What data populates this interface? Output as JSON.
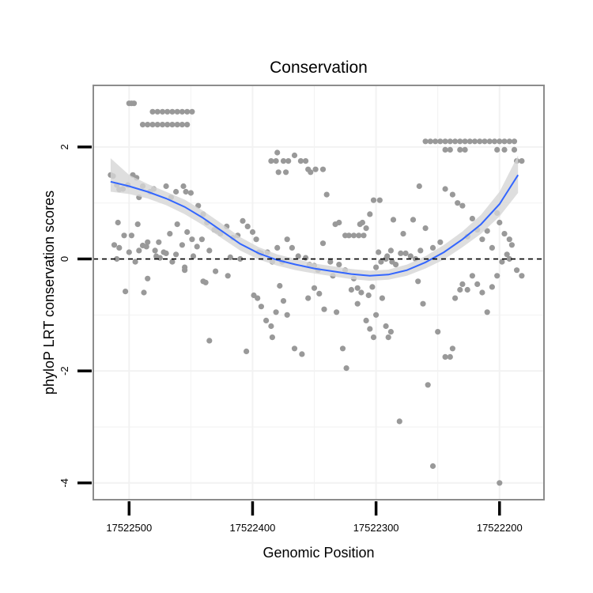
{
  "chart_data": {
    "type": "scatter",
    "title": "Conservation",
    "xlabel": "Genomic Position",
    "ylabel": "phyloP LRT conservation scores",
    "x_reversed": true,
    "xlim": [
      17522529,
      17522164
    ],
    "ylim": [
      -4.3,
      3.1
    ],
    "x_ticks": [
      17522500,
      17522400,
      17522300,
      17522200
    ],
    "x_tick_labels": [
      "17522500",
      "17522400",
      "17522300",
      "17522200"
    ],
    "y_ticks": [
      -4,
      -2,
      0,
      2
    ],
    "y_tick_labels": [
      "-4",
      "-2",
      "0",
      "2"
    ],
    "grid": true,
    "reference_line": {
      "y": 0,
      "style": "dashed"
    },
    "colors": {
      "points": "#999999",
      "fit_line": "#3366ff",
      "ribbon": "#d6d6d6",
      "grid": "#f2f2f2",
      "frame": "#8c8c8c"
    },
    "series": [
      {
        "kind": "points",
        "points": [
          [
            17522500,
            2.78
          ],
          [
            17522498,
            2.78
          ],
          [
            17522496,
            2.78
          ],
          [
            17522489,
            2.4
          ],
          [
            17522485,
            2.4
          ],
          [
            17522481,
            2.4
          ],
          [
            17522477,
            2.4
          ],
          [
            17522473,
            2.4
          ],
          [
            17522469,
            2.4
          ],
          [
            17522465,
            2.4
          ],
          [
            17522461,
            2.4
          ],
          [
            17522457,
            2.4
          ],
          [
            17522453,
            2.4
          ],
          [
            17522481,
            2.63
          ],
          [
            17522477,
            2.63
          ],
          [
            17522473,
            2.63
          ],
          [
            17522469,
            2.63
          ],
          [
            17522465,
            2.63
          ],
          [
            17522461,
            2.63
          ],
          [
            17522457,
            2.63
          ],
          [
            17522453,
            2.63
          ],
          [
            17522449,
            2.63
          ],
          [
            17522385,
            1.75
          ],
          [
            17522381,
            1.75
          ],
          [
            17522375,
            1.75
          ],
          [
            17522371,
            1.75
          ],
          [
            17522361,
            1.75
          ],
          [
            17522357,
            1.75
          ],
          [
            17522355,
            1.6
          ],
          [
            17522349,
            1.6
          ],
          [
            17522343,
            1.6
          ],
          [
            17522353,
            1.55
          ],
          [
            17522373,
            1.55
          ],
          [
            17522379,
            1.55
          ],
          [
            17522260,
            2.1
          ],
          [
            17522256,
            2.1
          ],
          [
            17522252,
            2.1
          ],
          [
            17522248,
            2.1
          ],
          [
            17522244,
            2.1
          ],
          [
            17522240,
            2.1
          ],
          [
            17522236,
            2.1
          ],
          [
            17522232,
            2.1
          ],
          [
            17522228,
            2.1
          ],
          [
            17522224,
            2.1
          ],
          [
            17522220,
            2.1
          ],
          [
            17522216,
            2.1
          ],
          [
            17522212,
            2.1
          ],
          [
            17522208,
            2.1
          ],
          [
            17522204,
            2.1
          ],
          [
            17522200,
            2.1
          ],
          [
            17522196,
            2.1
          ],
          [
            17522192,
            2.1
          ],
          [
            17522188,
            2.1
          ],
          [
            17522244,
            1.95
          ],
          [
            17522240,
            1.95
          ],
          [
            17522232,
            1.95
          ],
          [
            17522228,
            1.95
          ],
          [
            17522202,
            1.95
          ],
          [
            17522196,
            1.95
          ],
          [
            17522188,
            1.95
          ],
          [
            17522186,
            1.75
          ],
          [
            17522182,
            1.75
          ],
          [
            17522515,
            1.5
          ],
          [
            17522513,
            1.48
          ],
          [
            17522510,
            1.32
          ],
          [
            17522508,
            1.24
          ],
          [
            17522505,
            1.25
          ],
          [
            17522501,
            1.32
          ],
          [
            17522497,
            1.5
          ],
          [
            17522494,
            1.45
          ],
          [
            17522492,
            1.1
          ],
          [
            17522489,
            1.3
          ],
          [
            17522483,
            1.2
          ],
          [
            17522480,
            1.25
          ],
          [
            17522470,
            1.3
          ],
          [
            17522466,
            1.1
          ],
          [
            17522462,
            1.2
          ],
          [
            17522456,
            1.3
          ],
          [
            17522454,
            1.2
          ],
          [
            17522450,
            1.18
          ],
          [
            17522444,
            0.95
          ],
          [
            17522440,
            0.8
          ],
          [
            17522437,
            0.65
          ],
          [
            17522431,
            0.52
          ],
          [
            17522426,
            0.45
          ],
          [
            17522509,
            0.65
          ],
          [
            17522504,
            0.42
          ],
          [
            17522498,
            0.42
          ],
          [
            17522493,
            0.62
          ],
          [
            17522489,
            0.24
          ],
          [
            17522485,
            0.3
          ],
          [
            17522479,
            0.15
          ],
          [
            17522476,
            0.3
          ],
          [
            17522472,
            0.12
          ],
          [
            17522467,
            0.45
          ],
          [
            17522461,
            0.62
          ],
          [
            17522457,
            0.25
          ],
          [
            17522453,
            0.48
          ],
          [
            17522449,
            0.35
          ],
          [
            17522445,
            0.22
          ],
          [
            17522441,
            0.35
          ],
          [
            17522512,
            0.25
          ],
          [
            17522508,
            0.2
          ],
          [
            17522500,
            0.12
          ],
          [
            17522492,
            0.15
          ],
          [
            17522486,
            0.22
          ],
          [
            17522478,
            0.05
          ],
          [
            17522470,
            0.1
          ],
          [
            17522462,
            0.08
          ],
          [
            17522455,
            -0.15
          ],
          [
            17522448,
            0.05
          ],
          [
            17522435,
            0.15
          ],
          [
            17522429,
            0.5
          ],
          [
            17522421,
            0.58
          ],
          [
            17522416,
            0.38
          ],
          [
            17522412,
            0.42
          ],
          [
            17522408,
            0.68
          ],
          [
            17522510,
            0.0
          ],
          [
            17522495,
            -0.05
          ],
          [
            17522485,
            -0.35
          ],
          [
            17522475,
            0.02
          ],
          [
            17522465,
            -0.05
          ],
          [
            17522455,
            -0.2
          ],
          [
            17522440,
            -0.4
          ],
          [
            17522430,
            -0.22
          ],
          [
            17522420,
            -0.3
          ],
          [
            17522410,
            0.0
          ],
          [
            17522503,
            -0.58
          ],
          [
            17522488,
            -0.6
          ],
          [
            17522438,
            -0.42
          ],
          [
            17522435,
            -1.46
          ],
          [
            17522418,
            0.03
          ],
          [
            17522404,
            0.58
          ],
          [
            17522400,
            0.48
          ],
          [
            17522397,
            0.35
          ],
          [
            17522395,
            0.12
          ],
          [
            17522393,
            0.1
          ],
          [
            17522388,
            0.12
          ],
          [
            17522384,
            -0.05
          ],
          [
            17522380,
            0.2
          ],
          [
            17522376,
            -0.05
          ],
          [
            17522372,
            0.35
          ],
          [
            17522368,
            0.2
          ],
          [
            17522363,
            0.05
          ],
          [
            17522357,
            0.02
          ],
          [
            17522354,
            -0.1
          ],
          [
            17522350,
            -0.12
          ],
          [
            17522347,
            -0.2
          ],
          [
            17522343,
            0.28
          ],
          [
            17522399,
            -0.65
          ],
          [
            17522396,
            -0.7
          ],
          [
            17522393,
            -0.85
          ],
          [
            17522389,
            -1.1
          ],
          [
            17522385,
            -1.2
          ],
          [
            17522384,
            -1.4
          ],
          [
            17522381,
            -0.95
          ],
          [
            17522378,
            -0.48
          ],
          [
            17522375,
            -0.75
          ],
          [
            17522372,
            -1.0
          ],
          [
            17522366,
            -1.6
          ],
          [
            17522360,
            -1.7
          ],
          [
            17522355,
            -0.7
          ],
          [
            17522350,
            -0.52
          ],
          [
            17522346,
            -0.62
          ],
          [
            17522342,
            -0.9
          ],
          [
            17522405,
            -1.65
          ],
          [
            17522380,
            1.9
          ],
          [
            17522366,
            1.85
          ],
          [
            17522340,
            1.15
          ],
          [
            17522335,
            -0.3
          ],
          [
            17522333,
            0.62
          ],
          [
            17522330,
            0.65
          ],
          [
            17522325,
            0.42
          ],
          [
            17522322,
            0.42
          ],
          [
            17522318,
            0.42
          ],
          [
            17522314,
            0.42
          ],
          [
            17522310,
            0.42
          ],
          [
            17522337,
            -0.05
          ],
          [
            17522330,
            -0.1
          ],
          [
            17522325,
            -0.2
          ],
          [
            17522320,
            -0.55
          ],
          [
            17522318,
            -0.35
          ],
          [
            17522315,
            -0.52
          ],
          [
            17522312,
            -0.6
          ],
          [
            17522306,
            -0.65
          ],
          [
            17522303,
            -0.5
          ],
          [
            17522300,
            -0.15
          ],
          [
            17522298,
            0.12
          ],
          [
            17522296,
            -0.05
          ],
          [
            17522292,
            0.0
          ],
          [
            17522288,
            0.15
          ],
          [
            17522332,
            -0.95
          ],
          [
            17522327,
            -1.6
          ],
          [
            17522324,
            -1.95
          ],
          [
            17522315,
            -0.8
          ],
          [
            17522308,
            -1.1
          ],
          [
            17522305,
            -1.25
          ],
          [
            17522302,
            -1.4
          ],
          [
            17522300,
            -1.0
          ],
          [
            17522295,
            -0.7
          ],
          [
            17522292,
            -1.2
          ],
          [
            17522288,
            -1.3
          ],
          [
            17522313,
            0.62
          ],
          [
            17522311,
            0.65
          ],
          [
            17522308,
            0.55
          ],
          [
            17522305,
            0.8
          ],
          [
            17522302,
            1.05
          ],
          [
            17522297,
            1.05
          ],
          [
            17522291,
            0.05
          ],
          [
            17522287,
            -0.05
          ],
          [
            17522284,
            -0.1
          ],
          [
            17522280,
            0.1
          ],
          [
            17522276,
            0.1
          ],
          [
            17522272,
            0.05
          ],
          [
            17522268,
            0.0
          ],
          [
            17522264,
            0.15
          ],
          [
            17522290,
            -1.4
          ],
          [
            17522281,
            -2.9
          ],
          [
            17522266,
            -0.4
          ],
          [
            17522262,
            -0.8
          ],
          [
            17522258,
            -2.25
          ],
          [
            17522254,
            -3.7
          ],
          [
            17522250,
            -1.3
          ],
          [
            17522244,
            -1.75
          ],
          [
            17522240,
            -1.75
          ],
          [
            17522238,
            -1.6
          ],
          [
            17522236,
            -0.7
          ],
          [
            17522232,
            -0.55
          ],
          [
            17522230,
            -0.45
          ],
          [
            17522226,
            -0.55
          ],
          [
            17522222,
            -0.3
          ],
          [
            17522286,
            0.7
          ],
          [
            17522278,
            0.45
          ],
          [
            17522270,
            0.7
          ],
          [
            17522265,
            1.3
          ],
          [
            17522260,
            0.55
          ],
          [
            17522254,
            0.2
          ],
          [
            17522248,
            0.3
          ],
          [
            17522244,
            1.25
          ],
          [
            17522238,
            1.15
          ],
          [
            17522234,
            1.0
          ],
          [
            17522230,
            0.95
          ],
          [
            17522226,
            0.4
          ],
          [
            17522222,
            0.72
          ],
          [
            17522218,
            0.52
          ],
          [
            17522214,
            0.35
          ],
          [
            17522210,
            0.5
          ],
          [
            17522206,
            0.2
          ],
          [
            17522202,
            0.82
          ],
          [
            17522200,
            0.65
          ],
          [
            17522196,
            0.45
          ],
          [
            17522192,
            0.35
          ],
          [
            17522218,
            -0.45
          ],
          [
            17522214,
            -0.6
          ],
          [
            17522210,
            -0.95
          ],
          [
            17522206,
            -0.5
          ],
          [
            17522202,
            -0.3
          ],
          [
            17522198,
            -0.05
          ],
          [
            17522194,
            0.08
          ],
          [
            17522190,
            0.25
          ],
          [
            17522186,
            -0.2
          ],
          [
            17522182,
            -0.3
          ],
          [
            17522192,
            0.0
          ],
          [
            17522200,
            -4.0
          ]
        ]
      },
      {
        "kind": "smooth",
        "x": [
          17522515,
          17522500,
          17522485,
          17522470,
          17522455,
          17522440,
          17522425,
          17522410,
          17522395,
          17522380,
          17522365,
          17522350,
          17522335,
          17522320,
          17522305,
          17522290,
          17522275,
          17522260,
          17522245,
          17522230,
          17522215,
          17522200,
          17522185
        ],
        "y": [
          1.38,
          1.3,
          1.2,
          1.08,
          0.93,
          0.73,
          0.5,
          0.27,
          0.1,
          -0.02,
          -0.1,
          -0.17,
          -0.22,
          -0.27,
          -0.3,
          -0.28,
          -0.2,
          -0.06,
          0.12,
          0.35,
          0.62,
          0.98,
          1.5
        ],
        "lower": [
          1.2,
          1.16,
          1.08,
          0.96,
          0.8,
          0.6,
          0.37,
          0.15,
          -0.01,
          -0.12,
          -0.2,
          -0.26,
          -0.31,
          -0.36,
          -0.39,
          -0.37,
          -0.3,
          -0.17,
          -0.01,
          0.21,
          0.45,
          0.76,
          1.18
        ],
        "upper": [
          1.8,
          1.5,
          1.34,
          1.2,
          1.06,
          0.86,
          0.63,
          0.39,
          0.21,
          0.08,
          0.0,
          -0.08,
          -0.13,
          -0.18,
          -0.21,
          -0.19,
          -0.1,
          0.05,
          0.25,
          0.49,
          0.79,
          1.2,
          1.85
        ]
      }
    ]
  }
}
